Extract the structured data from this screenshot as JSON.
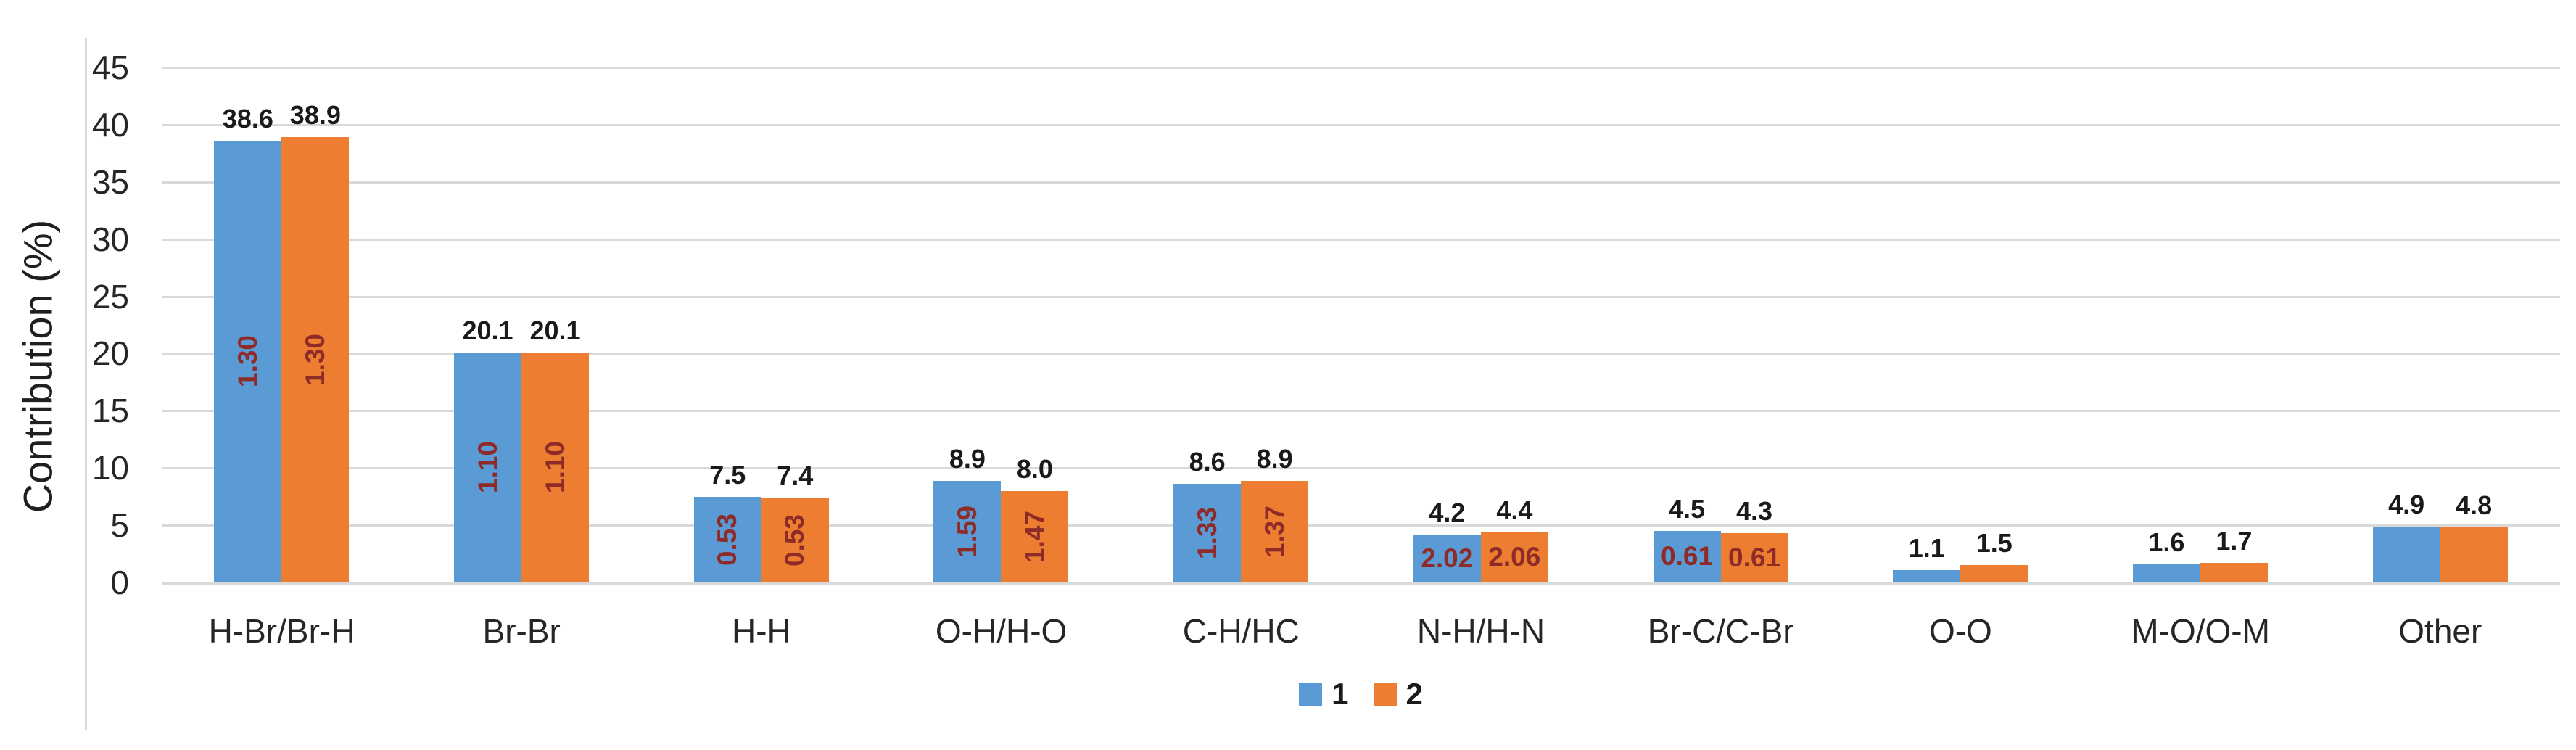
{
  "chart_data": {
    "type": "bar",
    "title": "",
    "xlabel": "",
    "ylabel": "Contribution (%)",
    "ylim": [
      0,
      45
    ],
    "yticks": [
      45,
      40,
      35,
      30,
      25,
      20,
      15,
      10,
      5,
      0
    ],
    "grid": true,
    "legend_position": "bottom-center",
    "categories": [
      "H-Br/Br-H",
      "Br-Br",
      "H-H",
      "O-H/H-O",
      "C-H/HC",
      "N-H/H-N",
      "Br-C/C-Br",
      "O-O",
      "M-O/O-M",
      "Other"
    ],
    "series": [
      {
        "name": "1",
        "color": "#5B9BD5",
        "values": [
          38.6,
          20.1,
          7.5,
          8.9,
          8.6,
          4.2,
          4.5,
          1.1,
          1.6,
          4.9
        ],
        "bar_labels": [
          "38.6",
          "20.1",
          "7.5",
          "8.9",
          "8.6",
          "4.2",
          "4.5",
          "1.1",
          "1.6",
          "4.9"
        ],
        "inside_labels": [
          "1.30",
          "1.10",
          "0.53",
          "1.59",
          "1.33",
          "2.02",
          "0.61",
          "",
          "",
          ""
        ]
      },
      {
        "name": "2",
        "color": "#ED7D31",
        "values": [
          38.9,
          20.1,
          7.4,
          8.0,
          8.9,
          4.4,
          4.3,
          1.5,
          1.7,
          4.8
        ],
        "bar_labels": [
          "38.9",
          "20.1",
          "7.4",
          "8.0",
          "8.9",
          "4.4",
          "4.3",
          "1.5",
          "1.7",
          "4.8"
        ],
        "inside_labels": [
          "1.30",
          "1.10",
          "0.53",
          "1.47",
          "1.37",
          "2.06",
          "0.61",
          "",
          "",
          ""
        ]
      }
    ],
    "inside_label_rotated": [
      true,
      true,
      true,
      true,
      true,
      false,
      false,
      false,
      false,
      false
    ],
    "inside_label_color": "#8E2B28",
    "outside_label_color": "#1A1A1A",
    "gridline_color": "#D9D9D9",
    "tick_color": "#262626"
  }
}
